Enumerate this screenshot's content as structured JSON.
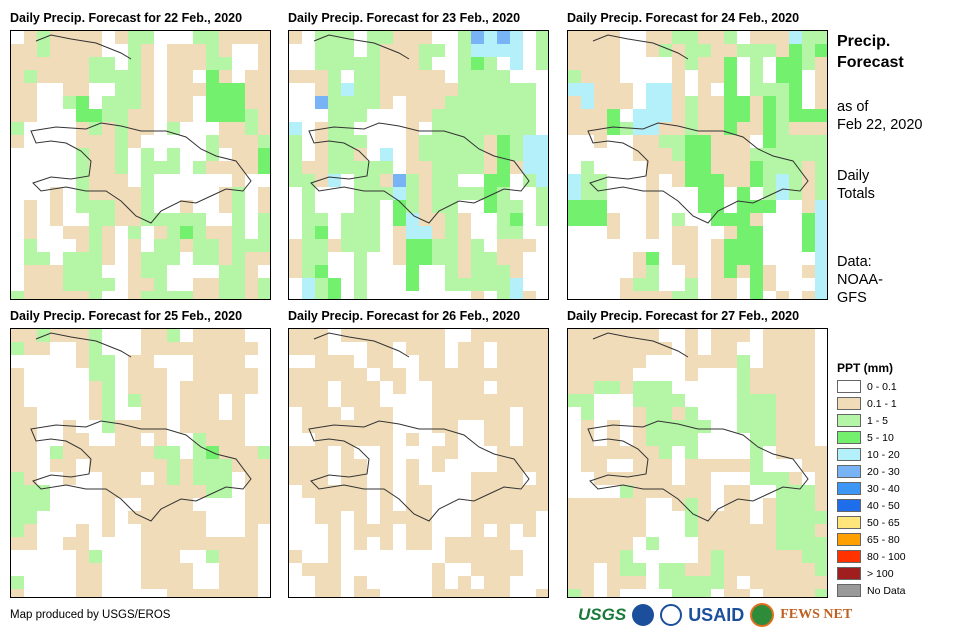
{
  "panels": [
    {
      "title": "Daily Precip. Forecast for 22 Feb., 2020"
    },
    {
      "title": "Daily Precip. Forecast for 23 Feb., 2020"
    },
    {
      "title": "Daily Precip. Forecast for 24 Feb., 2020"
    },
    {
      "title": "Daily Precip. Forecast for 25 Feb., 2020"
    },
    {
      "title": "Daily Precip. Forecast for 26 Feb., 2020"
    },
    {
      "title": "Daily Precip. Forecast for 27 Feb., 2020"
    }
  ],
  "side": {
    "heading1": "Precip.",
    "heading2": "Forecast",
    "asof1": "as of",
    "asof2": "Feb 22, 2020",
    "daily1": "Daily",
    "daily2": "Totals",
    "data1": "Data:",
    "data2": "NOAA-",
    "data3": "GFS"
  },
  "legend": {
    "title": "PPT (mm)",
    "items": [
      {
        "label": "0 - 0.1",
        "color": "#ffffff"
      },
      {
        "label": "0.1 - 1",
        "color": "#f0dcb8"
      },
      {
        "label": "1 - 5",
        "color": "#b4f5a6"
      },
      {
        "label": "5 - 10",
        "color": "#73f06e"
      },
      {
        "label": "10 - 20",
        "color": "#b4f0fa"
      },
      {
        "label": "20 - 30",
        "color": "#78b4f5"
      },
      {
        "label": "30 - 40",
        "color": "#3c96f5"
      },
      {
        "label": "40 - 50",
        "color": "#1e6eeb"
      },
      {
        "label": "50 - 65",
        "color": "#ffe67c"
      },
      {
        "label": "65 - 80",
        "color": "#ffa000"
      },
      {
        "label": "80 - 100",
        "color": "#ff3200"
      },
      {
        "label": "> 100",
        "color": "#a01e1e"
      },
      {
        "label": "No Data",
        "color": "#999999"
      }
    ]
  },
  "footer": "Map produced by USGS/EROS",
  "logos": {
    "usgs": "USGS",
    "usaid": "USAID",
    "fews": "FEWS NET"
  }
}
